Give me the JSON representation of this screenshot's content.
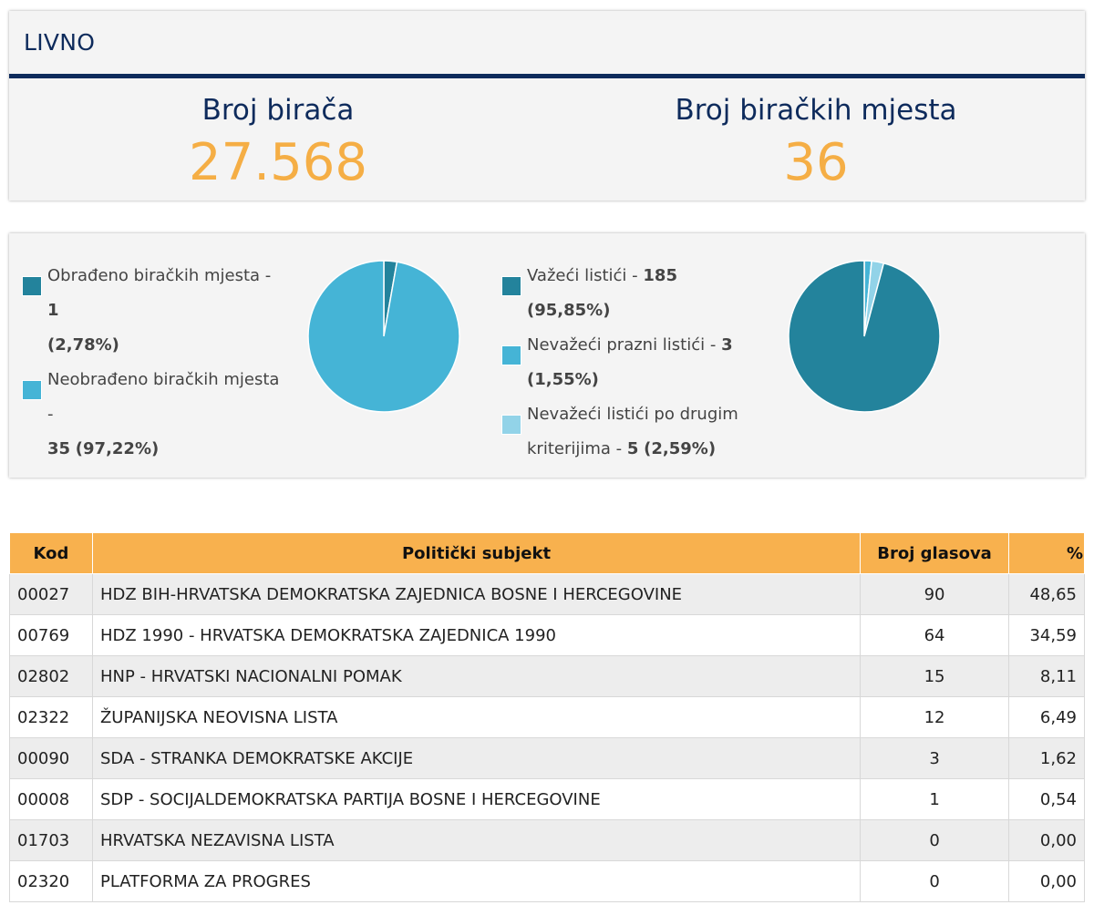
{
  "municipality": "LIVNO",
  "stats": {
    "voters_label": "Broj birača",
    "voters_value": "27.568",
    "stations_label": "Broj biračkih mjesta",
    "stations_value": "36"
  },
  "colors": {
    "navy": "#0e2b5c",
    "orange": "#f5ae45",
    "dark_teal": "#23839c",
    "mid_blue": "#45b4d6",
    "light_blue": "#92d3e8"
  },
  "chart_data": [
    {
      "type": "pie",
      "series": [
        {
          "label": "Obrađeno biračkih mjesta",
          "count": "1",
          "pct": "(2,78%)",
          "value": 2.78,
          "color": "#23839c"
        },
        {
          "label": "Neobrađeno biračkih mjesta",
          "count": "35",
          "pct": "(97,22%)",
          "value": 97.22,
          "color": "#45b4d6"
        }
      ]
    },
    {
      "type": "pie",
      "series": [
        {
          "label": "Važeći listići",
          "count": "185",
          "pct": "(95,85%)",
          "value": 95.85,
          "color": "#23839c"
        },
        {
          "label": "Nevažeći prazni listići",
          "count": "3",
          "pct": "(1,55%)",
          "value": 1.55,
          "color": "#45b4d6"
        },
        {
          "label": "Nevažeći listići po drugim kriterijima",
          "count": "5",
          "pct": "(2,59%)",
          "value": 2.59,
          "color": "#92d3e8"
        }
      ]
    }
  ],
  "table": {
    "headers": [
      "Kod",
      "Politički subjekt",
      "Broj glasova",
      "%"
    ],
    "rows": [
      [
        "00027",
        "HDZ BIH-HRVATSKA DEMOKRATSKA ZAJEDNICA BOSNE I HERCEGOVINE",
        "90",
        "48,65"
      ],
      [
        "00769",
        "HDZ 1990 - HRVATSKA DEMOKRATSKA ZAJEDNICA 1990",
        "64",
        "34,59"
      ],
      [
        "02802",
        "HNP - HRVATSKI NACIONALNI POMAK",
        "15",
        "8,11"
      ],
      [
        "02322",
        "ŽUPANIJSKA NEOVISNA LISTA",
        "12",
        "6,49"
      ],
      [
        "00090",
        "SDA - STRANKA DEMOKRATSKE AKCIJE",
        "3",
        "1,62"
      ],
      [
        "00008",
        "SDP - SOCIJALDEMOKRATSKA PARTIJA BOSNE I HERCEGOVINE",
        "1",
        "0,54"
      ],
      [
        "01703",
        "HRVATSKA NEZAVISNA LISTA",
        "0",
        "0,00"
      ],
      [
        "02320",
        "PLATFORMA ZA PROGRES",
        "0",
        "0,00"
      ]
    ]
  }
}
